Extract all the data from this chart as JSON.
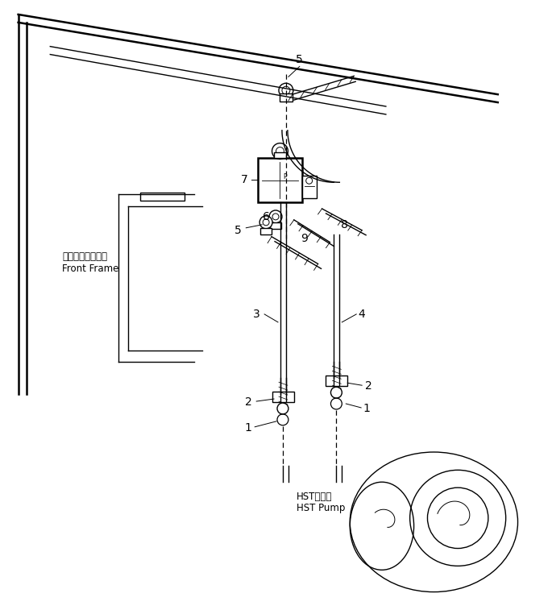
{
  "background_color": "#ffffff",
  "line_color": "#000000",
  "fig_width": 6.85,
  "fig_height": 7.57,
  "labels": {
    "front_frame_jp": "フロントフレーム",
    "front_frame_en": "Front Frame",
    "hst_pump_jp": "HSTボンプ",
    "hst_pump_en": "HST Pump"
  }
}
